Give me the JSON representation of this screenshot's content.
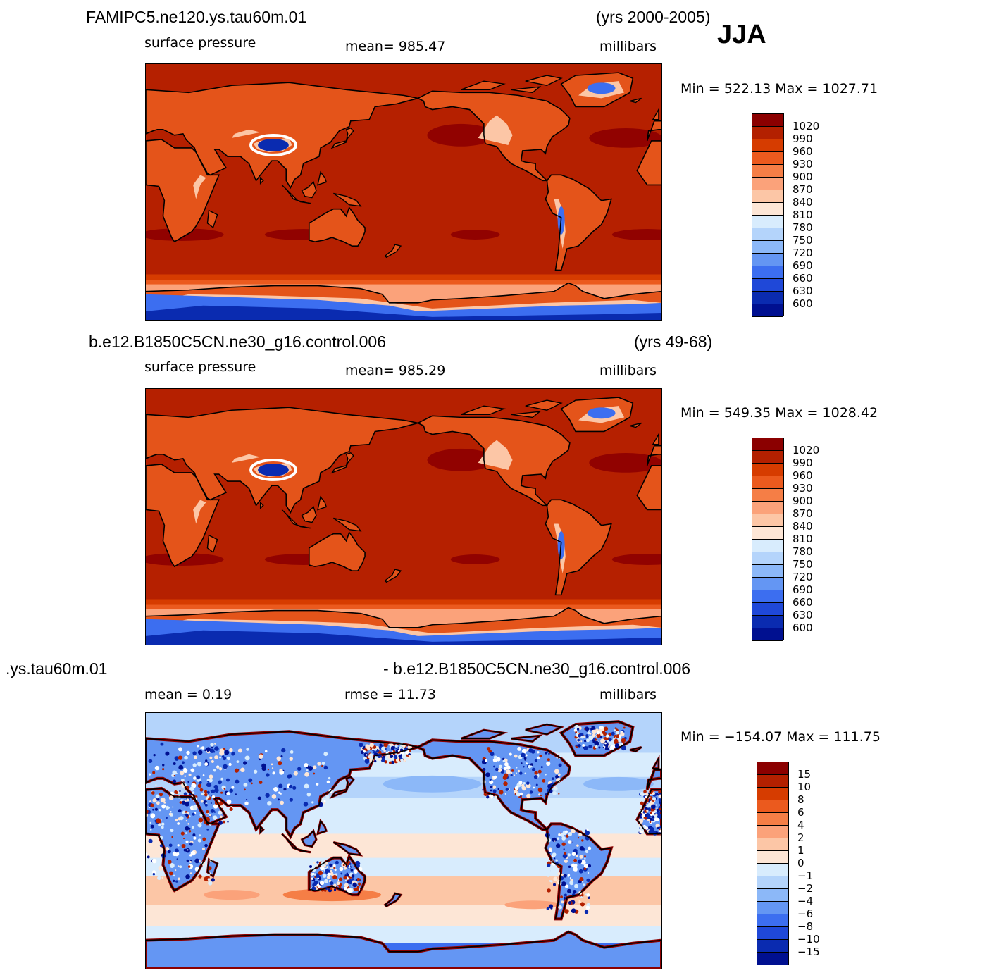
{
  "season": "JJA",
  "panels": [
    {
      "case": "FAMIPC5.ne120.ys.tau60m.01",
      "years": "(yrs 2000-2005)",
      "left": "surface pressure",
      "center": "mean=  985.47",
      "units": "millibars",
      "minmax": "Min  =  522.13  Max  =  1027.71",
      "map_type": "pressure",
      "colorbar": {
        "labels": [
          "1020",
          "990",
          "960",
          "930",
          "900",
          "870",
          "840",
          "810",
          "780",
          "750",
          "720",
          "690",
          "660",
          "630",
          "600"
        ],
        "colors": [
          "#8b0000",
          "#b32000",
          "#d63c00",
          "#eb5a1e",
          "#f57e46",
          "#fba27a",
          "#fcc6a6",
          "#fde6d6",
          "#d8ecfd",
          "#b4d4fb",
          "#8cb8f8",
          "#6496f3",
          "#3c6ef0",
          "#1f48d8",
          "#0a2bb0",
          "#001090"
        ]
      }
    },
    {
      "case": "b.e12.B1850C5CN.ne30_g16.control.006",
      "years": "(yrs 49-68)",
      "left": "surface pressure",
      "center": "mean=  985.29",
      "units": "millibars",
      "minmax": "Min  =  549.35  Max  =  1028.42",
      "map_type": "pressure",
      "colorbar": {
        "labels": [
          "1020",
          "990",
          "960",
          "930",
          "900",
          "870",
          "840",
          "810",
          "780",
          "750",
          "720",
          "690",
          "660",
          "630",
          "600"
        ],
        "colors": [
          "#8b0000",
          "#b32000",
          "#d63c00",
          "#eb5a1e",
          "#f57e46",
          "#fba27a",
          "#fcc6a6",
          "#fde6d6",
          "#d8ecfd",
          "#b4d4fb",
          "#8cb8f8",
          "#6496f3",
          "#3c6ef0",
          "#1f48d8",
          "#0a2bb0",
          "#001090"
        ]
      }
    },
    {
      "case": ".ys.tau60m.01",
      "years": "- b.e12.B1850C5CN.ne30_g16.control.006",
      "left": "mean  =     0.19",
      "center": "rmse  =    11.73",
      "units": "millibars",
      "minmax": "Min  =  −154.07  Max  =  111.75",
      "map_type": "difference",
      "colorbar": {
        "labels": [
          "15",
          "10",
          "8",
          "6",
          "4",
          "2",
          "1",
          "0",
          "−1",
          "−2",
          "−4",
          "−6",
          "−8",
          "−10",
          "−15"
        ],
        "colors": [
          "#8b0000",
          "#b32000",
          "#d63c00",
          "#eb5a1e",
          "#f57e46",
          "#fba27a",
          "#fcc6a6",
          "#fde6d6",
          "#d8ecfd",
          "#b4d4fb",
          "#8cb8f8",
          "#6496f3",
          "#3c6ef0",
          "#1f48d8",
          "#0a2bb0",
          "#001090"
        ]
      }
    }
  ]
}
